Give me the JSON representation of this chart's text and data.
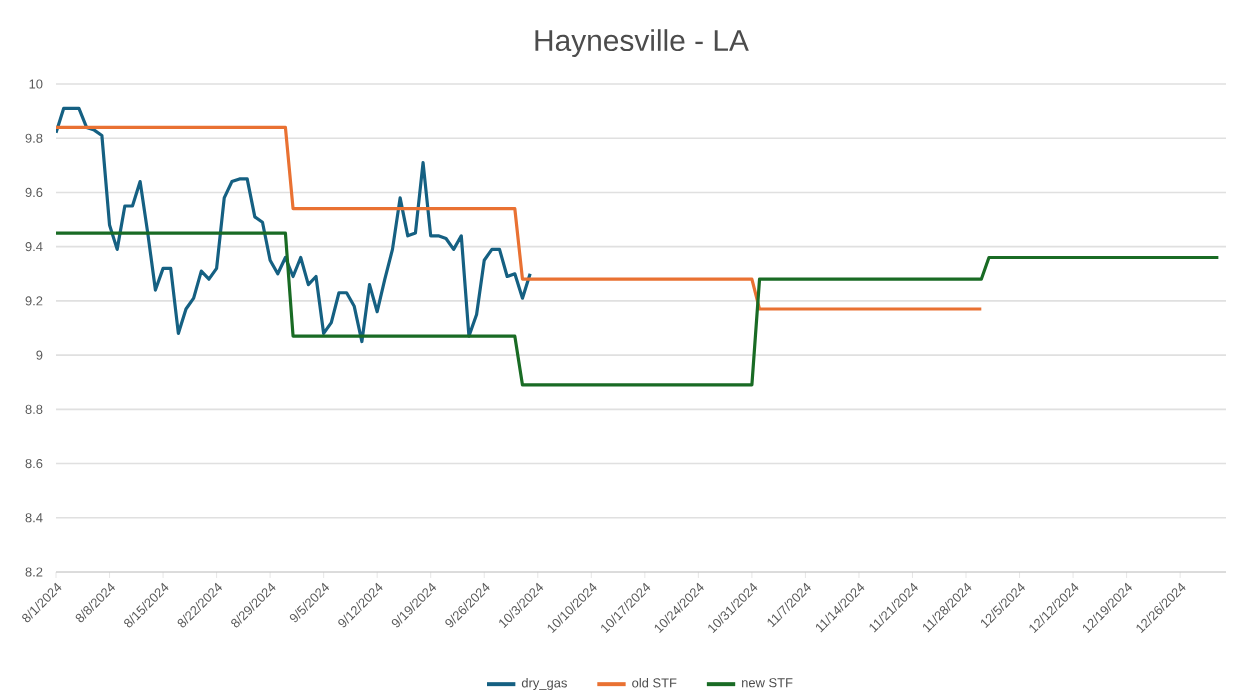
{
  "chart_data": {
    "type": "line",
    "title": "Haynesville - LA",
    "series": [
      {
        "name": "dry_gas",
        "color": "#156082",
        "x": [
          "2024-08-01",
          "2024-08-02",
          "2024-08-03",
          "2024-08-04",
          "2024-08-05",
          "2024-08-06",
          "2024-08-07",
          "2024-08-08",
          "2024-08-09",
          "2024-08-10",
          "2024-08-11",
          "2024-08-12",
          "2024-08-13",
          "2024-08-14",
          "2024-08-15",
          "2024-08-16",
          "2024-08-17",
          "2024-08-18",
          "2024-08-19",
          "2024-08-20",
          "2024-08-21",
          "2024-08-22",
          "2024-08-23",
          "2024-08-24",
          "2024-08-25",
          "2024-08-26",
          "2024-08-27",
          "2024-08-28",
          "2024-08-29",
          "2024-08-30",
          "2024-08-31",
          "2024-09-01",
          "2024-09-02",
          "2024-09-03",
          "2024-09-04",
          "2024-09-05",
          "2024-09-06",
          "2024-09-07",
          "2024-09-08",
          "2024-09-09",
          "2024-09-10",
          "2024-09-11",
          "2024-09-12",
          "2024-09-13",
          "2024-09-14",
          "2024-09-15",
          "2024-09-16",
          "2024-09-17",
          "2024-09-18",
          "2024-09-19",
          "2024-09-20",
          "2024-09-21",
          "2024-09-22",
          "2024-09-23",
          "2024-09-24",
          "2024-09-25",
          "2024-09-26",
          "2024-09-27",
          "2024-09-28",
          "2024-09-29",
          "2024-09-30",
          "2024-10-01",
          "2024-10-02"
        ],
        "values": [
          9.82,
          9.91,
          9.91,
          9.91,
          9.84,
          9.83,
          9.81,
          9.48,
          9.39,
          9.55,
          9.55,
          9.64,
          9.45,
          9.24,
          9.32,
          9.32,
          9.08,
          9.17,
          9.21,
          9.31,
          9.28,
          9.32,
          9.58,
          9.64,
          9.65,
          9.65,
          9.51,
          9.49,
          9.35,
          9.3,
          9.36,
          9.29,
          9.36,
          9.26,
          9.29,
          9.08,
          9.12,
          9.23,
          9.23,
          9.18,
          9.05,
          9.26,
          9.16,
          9.28,
          9.39,
          9.58,
          9.44,
          9.45,
          9.71,
          9.44,
          9.44,
          9.43,
          9.39,
          9.44,
          9.07,
          9.15,
          9.35,
          9.39,
          9.39,
          9.29,
          9.3,
          9.21,
          9.3
        ]
      },
      {
        "name": "old STF",
        "color": "#e97132",
        "x": [
          "2024-08-01",
          "2024-08-31",
          "2024-09-01",
          "2024-09-30",
          "2024-10-01",
          "2024-10-31",
          "2024-11-01",
          "2024-11-30"
        ],
        "values": [
          9.84,
          9.84,
          9.54,
          9.54,
          9.28,
          9.28,
          9.17,
          9.17
        ]
      },
      {
        "name": "new STF",
        "color": "#196b24",
        "x": [
          "2024-08-01",
          "2024-08-31",
          "2024-09-01",
          "2024-09-30",
          "2024-10-01",
          "2024-10-31",
          "2024-11-01",
          "2024-11-30",
          "2024-12-01",
          "2024-12-31"
        ],
        "values": [
          9.45,
          9.45,
          9.07,
          9.07,
          8.89,
          8.89,
          9.28,
          9.28,
          9.36,
          9.36
        ]
      }
    ],
    "xlim": [
      "2024-08-01",
      "2025-01-01"
    ],
    "xticks": [
      {
        "value": "2024-08-01",
        "label": "8/1/2024"
      },
      {
        "value": "2024-08-08",
        "label": "8/8/2024"
      },
      {
        "value": "2024-08-15",
        "label": "8/15/2024"
      },
      {
        "value": "2024-08-22",
        "label": "8/22/2024"
      },
      {
        "value": "2024-08-29",
        "label": "8/29/2024"
      },
      {
        "value": "2024-09-05",
        "label": "9/5/2024"
      },
      {
        "value": "2024-09-12",
        "label": "9/12/2024"
      },
      {
        "value": "2024-09-19",
        "label": "9/19/2024"
      },
      {
        "value": "2024-09-26",
        "label": "9/26/2024"
      },
      {
        "value": "2024-10-03",
        "label": "10/3/2024"
      },
      {
        "value": "2024-10-10",
        "label": "10/10/2024"
      },
      {
        "value": "2024-10-17",
        "label": "10/17/2024"
      },
      {
        "value": "2024-10-24",
        "label": "10/24/2024"
      },
      {
        "value": "2024-10-31",
        "label": "10/31/2024"
      },
      {
        "value": "2024-11-07",
        "label": "11/7/2024"
      },
      {
        "value": "2024-11-14",
        "label": "11/14/2024"
      },
      {
        "value": "2024-11-21",
        "label": "11/21/2024"
      },
      {
        "value": "2024-11-28",
        "label": "11/28/2024"
      },
      {
        "value": "2024-12-05",
        "label": "12/5/2024"
      },
      {
        "value": "2024-12-12",
        "label": "12/12/2024"
      },
      {
        "value": "2024-12-19",
        "label": "12/19/2024"
      },
      {
        "value": "2024-12-26",
        "label": "12/26/2024"
      }
    ],
    "ylim": [
      8.2,
      10
    ],
    "yticks": [
      8.2,
      8.4,
      8.6,
      8.8,
      9,
      9.2,
      9.4,
      9.6,
      9.8,
      10
    ],
    "grid": "y",
    "legend": "bottom",
    "marker": "none",
    "line_style": "solid"
  }
}
